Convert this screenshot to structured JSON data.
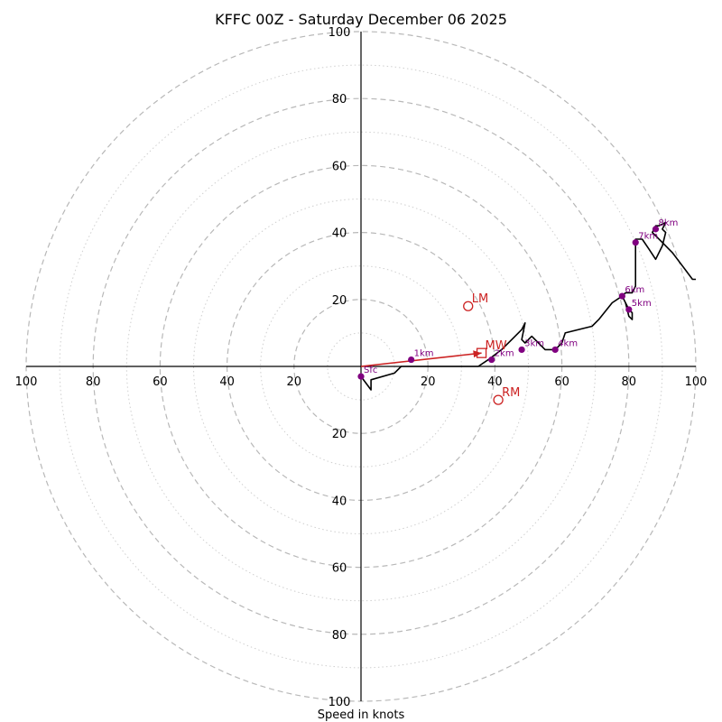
{
  "chart_data": {
    "type": "hodograph",
    "title": "KFFC 00Z - Saturday December 06 2025",
    "xlabel": "Speed in knots",
    "max_speed": 100,
    "ring_major": [
      20,
      40,
      60,
      80,
      100
    ],
    "ring_minor": [
      10,
      30,
      50,
      70,
      90
    ],
    "tick_values": [
      20,
      40,
      60,
      80,
      100
    ],
    "tick_labels": [
      "20",
      "40",
      "60",
      "80",
      "100"
    ],
    "colors": {
      "trace": "#000000",
      "height_marker": "#800080",
      "motion": "#cc2222",
      "grid": "#b8b8b8"
    },
    "trace": [
      [
        0,
        -3
      ],
      [
        3,
        -7
      ],
      [
        3,
        -4
      ],
      [
        10,
        -2
      ],
      [
        12,
        0
      ],
      [
        20,
        0
      ],
      [
        26,
        0
      ],
      [
        35,
        0
      ],
      [
        38,
        2
      ],
      [
        42,
        5
      ],
      [
        45,
        8
      ],
      [
        48,
        11
      ],
      [
        49,
        13
      ],
      [
        48,
        8
      ],
      [
        49,
        7
      ],
      [
        51,
        9
      ],
      [
        53,
        7
      ],
      [
        55,
        5
      ],
      [
        58,
        5
      ],
      [
        60,
        7
      ],
      [
        61,
        10
      ],
      [
        69,
        12
      ],
      [
        71,
        14
      ],
      [
        75,
        19
      ],
      [
        78,
        21
      ],
      [
        79,
        19
      ],
      [
        80,
        17
      ],
      [
        81,
        16
      ],
      [
        81,
        14
      ],
      [
        80,
        15
      ],
      [
        79,
        19
      ],
      [
        78,
        21
      ],
      [
        79,
        22
      ],
      [
        81,
        22
      ],
      [
        82,
        24
      ],
      [
        82,
        27
      ],
      [
        82,
        31
      ],
      [
        82,
        38
      ],
      [
        84,
        38
      ],
      [
        86,
        35
      ],
      [
        88,
        32
      ],
      [
        90,
        36
      ],
      [
        91,
        40
      ],
      [
        90,
        41
      ],
      [
        91,
        43
      ],
      [
        89,
        42
      ],
      [
        88,
        42
      ],
      [
        87,
        40
      ],
      [
        90,
        37
      ],
      [
        93,
        34
      ],
      [
        96,
        30
      ],
      [
        99,
        26
      ],
      [
        100,
        26
      ]
    ],
    "height_points": [
      {
        "label": "Sfc",
        "u": 0,
        "v": -3
      },
      {
        "label": "1km",
        "u": 15,
        "v": 2
      },
      {
        "label": "2km",
        "u": 39,
        "v": 2
      },
      {
        "label": "3km",
        "u": 48,
        "v": 5
      },
      {
        "label": "4km",
        "u": 58,
        "v": 5
      },
      {
        "label": "5km",
        "u": 80,
        "v": 17
      },
      {
        "label": "6km",
        "u": 78,
        "v": 21
      },
      {
        "label": "7km",
        "u": 82,
        "v": 37
      },
      {
        "label": "8km",
        "u": 88,
        "v": 41
      }
    ],
    "storm_motions": [
      {
        "label": "LM",
        "u": 32,
        "v": 18,
        "shape": "circle"
      },
      {
        "label": "MW",
        "u": 36,
        "v": 4,
        "shape": "square"
      },
      {
        "label": "RM",
        "u": 41,
        "v": -10,
        "shape": "circle"
      }
    ],
    "shear_vector": {
      "from": [
        0,
        0
      ],
      "to": [
        36,
        4
      ]
    }
  }
}
